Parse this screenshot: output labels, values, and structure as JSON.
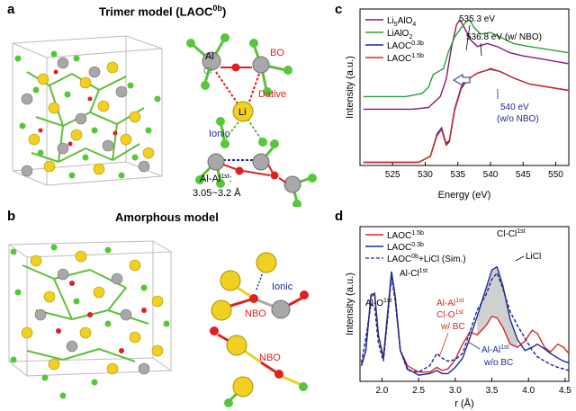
{
  "panels": {
    "a": {
      "label": "a",
      "title_main": "Trimer model (LAOC",
      "title_sup": "0b",
      "title_end": ")",
      "ann": {
        "al": "Al",
        "cl": "Cl",
        "li": "Li",
        "bo": "BO",
        "dative": "Dative",
        "ionic": "Ionic",
        "alal_main": "Al-Al",
        "alal_sup": "1st",
        "alal_colon": ":",
        "alal_range": "3.05~3.2 Å"
      }
    },
    "b": {
      "label": "b",
      "title": "Amorphous model",
      "ann": {
        "ionic": "Ionic",
        "nbo1": "NBO",
        "nbo2": "NBO"
      }
    },
    "c": {
      "label": "c"
    },
    "d": {
      "label": "d"
    }
  },
  "chart_data": [
    {
      "id": "c",
      "type": "line",
      "xlabel": "Energy (eV)",
      "ylabel": "Intensity (a.u.)",
      "xlim": [
        520,
        552
      ],
      "x_ticks": [
        525,
        530,
        535,
        540,
        545,
        550
      ],
      "legend_position": "top-left",
      "series": [
        {
          "name_main": "Li",
          "name_sub1": "5",
          "name_mid": "AlO",
          "name_sub2": "4",
          "color": "#8b1a6b",
          "points": [
            [
              520.5,
              0.36
            ],
            [
              528,
              0.36
            ],
            [
              530.5,
              0.37
            ],
            [
              531.5,
              0.41
            ],
            [
              532.3,
              0.44
            ],
            [
              533.2,
              0.55
            ],
            [
              534,
              0.75
            ],
            [
              534.8,
              0.9
            ],
            [
              535.3,
              0.93
            ],
            [
              536,
              0.88
            ],
            [
              537,
              0.8
            ],
            [
              538,
              0.76
            ],
            [
              539.5,
              0.78
            ],
            [
              541,
              0.76
            ],
            [
              543,
              0.72
            ],
            [
              545,
              0.7
            ],
            [
              548,
              0.68
            ],
            [
              552,
              0.65
            ]
          ]
        },
        {
          "name_main": "LiAlO",
          "name_sub2": "2",
          "color": "#2e9e3e",
          "points": [
            [
              520.5,
              0.44
            ],
            [
              527,
              0.44
            ],
            [
              529.5,
              0.46
            ],
            [
              530.5,
              0.5
            ],
            [
              531.2,
              0.58
            ],
            [
              532,
              0.6
            ],
            [
              532.8,
              0.62
            ],
            [
              533.5,
              0.72
            ],
            [
              534.5,
              0.82
            ],
            [
              535.5,
              0.88
            ],
            [
              536.3,
              0.92
            ],
            [
              536.8,
              0.93
            ],
            [
              537.5,
              0.88
            ],
            [
              538.5,
              0.84
            ],
            [
              540,
              0.85
            ],
            [
              541.5,
              0.82
            ],
            [
              543.5,
              0.78
            ],
            [
              546,
              0.76
            ],
            [
              549,
              0.74
            ],
            [
              552,
              0.72
            ]
          ]
        },
        {
          "name_main": "LAOC",
          "name_sup": "0.3b",
          "color": "#1f2a8f",
          "points": [
            [
              520.5,
              0.02
            ],
            [
              529,
              0.02
            ],
            [
              530.8,
              0.06
            ],
            [
              531.8,
              0.2
            ],
            [
              532.5,
              0.24
            ],
            [
              533.2,
              0.14
            ],
            [
              533.7,
              0.16
            ],
            [
              534.5,
              0.36
            ],
            [
              535.5,
              0.5
            ],
            [
              536.5,
              0.55
            ],
            [
              538,
              0.59
            ],
            [
              539.5,
              0.61
            ],
            [
              540,
              0.615
            ],
            [
              541.5,
              0.6
            ],
            [
              543.5,
              0.56
            ],
            [
              546,
              0.52
            ],
            [
              549,
              0.5
            ],
            [
              552,
              0.48
            ]
          ]
        },
        {
          "name_main": "LAOC",
          "name_sup": "1.5b",
          "color": "#d62828",
          "points": [
            [
              520.5,
              0.02
            ],
            [
              529,
              0.02
            ],
            [
              530.8,
              0.06
            ],
            [
              531.8,
              0.19
            ],
            [
              532.5,
              0.23
            ],
            [
              533.2,
              0.13
            ],
            [
              533.7,
              0.15
            ],
            [
              534.5,
              0.35
            ],
            [
              535.5,
              0.49
            ],
            [
              536.5,
              0.55
            ],
            [
              538,
              0.59
            ],
            [
              539.5,
              0.61
            ],
            [
              540,
              0.62
            ],
            [
              541.5,
              0.6
            ],
            [
              543.5,
              0.56
            ],
            [
              546,
              0.52
            ],
            [
              549,
              0.5
            ],
            [
              552,
              0.48
            ]
          ]
        }
      ],
      "annotations": {
        "peak1": "535.3 eV",
        "peak2": "536.8 eV (w/ NBO)",
        "peak3_line1": "540 eV",
        "peak3_line2": "(w/o NBO)"
      }
    },
    {
      "id": "d",
      "type": "line",
      "xlabel": "r (Å)",
      "ylabel": "Intensity (a.u.)",
      "xlim": [
        1.7,
        4.55
      ],
      "x_ticks": [
        2.0,
        2.5,
        3.0,
        3.5,
        4.0,
        4.5
      ],
      "legend_position": "top-left",
      "series": [
        {
          "name_main": "LAOC",
          "name_sup": "1.5b",
          "color": "#d62828",
          "dash": false,
          "points": [
            [
              1.72,
              0.1
            ],
            [
              1.78,
              0.2
            ],
            [
              1.85,
              0.55
            ],
            [
              1.9,
              0.56
            ],
            [
              1.95,
              0.3
            ],
            [
              2.02,
              0.15
            ],
            [
              2.08,
              0.45
            ],
            [
              2.13,
              0.7
            ],
            [
              2.18,
              0.55
            ],
            [
              2.25,
              0.2
            ],
            [
              2.35,
              0.1
            ],
            [
              2.5,
              0.06
            ],
            [
              2.65,
              0.06
            ],
            [
              2.75,
              0.09
            ],
            [
              2.82,
              0.07
            ],
            [
              2.9,
              0.08
            ],
            [
              3.0,
              0.14
            ],
            [
              3.1,
              0.24
            ],
            [
              3.2,
              0.32
            ],
            [
              3.3,
              0.3
            ],
            [
              3.42,
              0.36
            ],
            [
              3.5,
              0.42
            ],
            [
              3.57,
              0.41
            ],
            [
              3.65,
              0.35
            ],
            [
              3.75,
              0.24
            ],
            [
              3.85,
              0.22
            ],
            [
              3.95,
              0.26
            ],
            [
              4.05,
              0.33
            ],
            [
              4.12,
              0.31
            ],
            [
              4.22,
              0.22
            ],
            [
              4.3,
              0.19
            ],
            [
              4.4,
              0.24
            ],
            [
              4.48,
              0.22
            ],
            [
              4.55,
              0.18
            ]
          ]
        },
        {
          "name_main": "LAOC",
          "name_sup": "0.3b",
          "color": "#1f2a8f",
          "dash": false,
          "points": [
            [
              1.72,
              0.1
            ],
            [
              1.78,
              0.2
            ],
            [
              1.85,
              0.56
            ],
            [
              1.9,
              0.57
            ],
            [
              1.95,
              0.3
            ],
            [
              2.02,
              0.15
            ],
            [
              2.08,
              0.45
            ],
            [
              2.13,
              0.71
            ],
            [
              2.18,
              0.55
            ],
            [
              2.25,
              0.2
            ],
            [
              2.35,
              0.08
            ],
            [
              2.5,
              0.04
            ],
            [
              2.65,
              0.05
            ],
            [
              2.75,
              0.07
            ],
            [
              2.82,
              0.05
            ],
            [
              2.9,
              0.05
            ],
            [
              3.0,
              0.09
            ],
            [
              3.1,
              0.15
            ],
            [
              3.2,
              0.28
            ],
            [
              3.3,
              0.42
            ],
            [
              3.42,
              0.6
            ],
            [
              3.5,
              0.72
            ],
            [
              3.57,
              0.74
            ],
            [
              3.65,
              0.62
            ],
            [
              3.75,
              0.4
            ],
            [
              3.85,
              0.27
            ],
            [
              3.95,
              0.2
            ],
            [
              4.05,
              0.22
            ],
            [
              4.12,
              0.24
            ],
            [
              4.22,
              0.21
            ],
            [
              4.3,
              0.18
            ],
            [
              4.4,
              0.15
            ],
            [
              4.48,
              0.13
            ],
            [
              4.55,
              0.12
            ]
          ]
        },
        {
          "name_main": "LAOC",
          "name_sup": "0b",
          "name_end": "+LiCl (Sim.)",
          "color": "#1f2a8f",
          "dash": true,
          "points": [
            [
              1.72,
              0.12
            ],
            [
              1.78,
              0.28
            ],
            [
              1.85,
              0.5
            ],
            [
              1.9,
              0.48
            ],
            [
              1.95,
              0.25
            ],
            [
              2.02,
              0.13
            ],
            [
              2.08,
              0.42
            ],
            [
              2.13,
              0.68
            ],
            [
              2.18,
              0.52
            ],
            [
              2.25,
              0.2
            ],
            [
              2.35,
              0.07
            ],
            [
              2.5,
              0.06
            ],
            [
              2.65,
              0.1
            ],
            [
              2.75,
              0.18
            ],
            [
              2.82,
              0.15
            ],
            [
              2.9,
              0.13
            ],
            [
              3.0,
              0.14
            ],
            [
              3.1,
              0.18
            ],
            [
              3.2,
              0.32
            ],
            [
              3.3,
              0.46
            ],
            [
              3.42,
              0.56
            ],
            [
              3.5,
              0.66
            ],
            [
              3.57,
              0.7
            ],
            [
              3.65,
              0.6
            ],
            [
              3.75,
              0.45
            ],
            [
              3.85,
              0.36
            ],
            [
              3.95,
              0.28
            ],
            [
              4.05,
              0.2
            ],
            [
              4.12,
              0.16
            ],
            [
              4.22,
              0.13
            ],
            [
              4.3,
              0.11
            ],
            [
              4.4,
              0.09
            ],
            [
              4.48,
              0.08
            ],
            [
              4.55,
              0.07
            ]
          ]
        }
      ],
      "annotations": {
        "alo_main": "Al-O",
        "alo_sup": "1st",
        "alcl_main": "Al-Cl",
        "alcl_sup": "1st",
        "clcl_main": "Cl-Cl",
        "clcl_sup": "1st",
        "licl": "LiCl",
        "bc_l1_main": "Al-Al",
        "bc_l1_sup": "1st",
        "bc_l2_main": "Cl-O",
        "bc_l2_sup": "1st",
        "bc_l3": "w/ BC",
        "nobc_l1_main": "Al-Al",
        "nobc_l1_sup": "1st",
        "nobc_l2": "w/o BC"
      }
    }
  ]
}
